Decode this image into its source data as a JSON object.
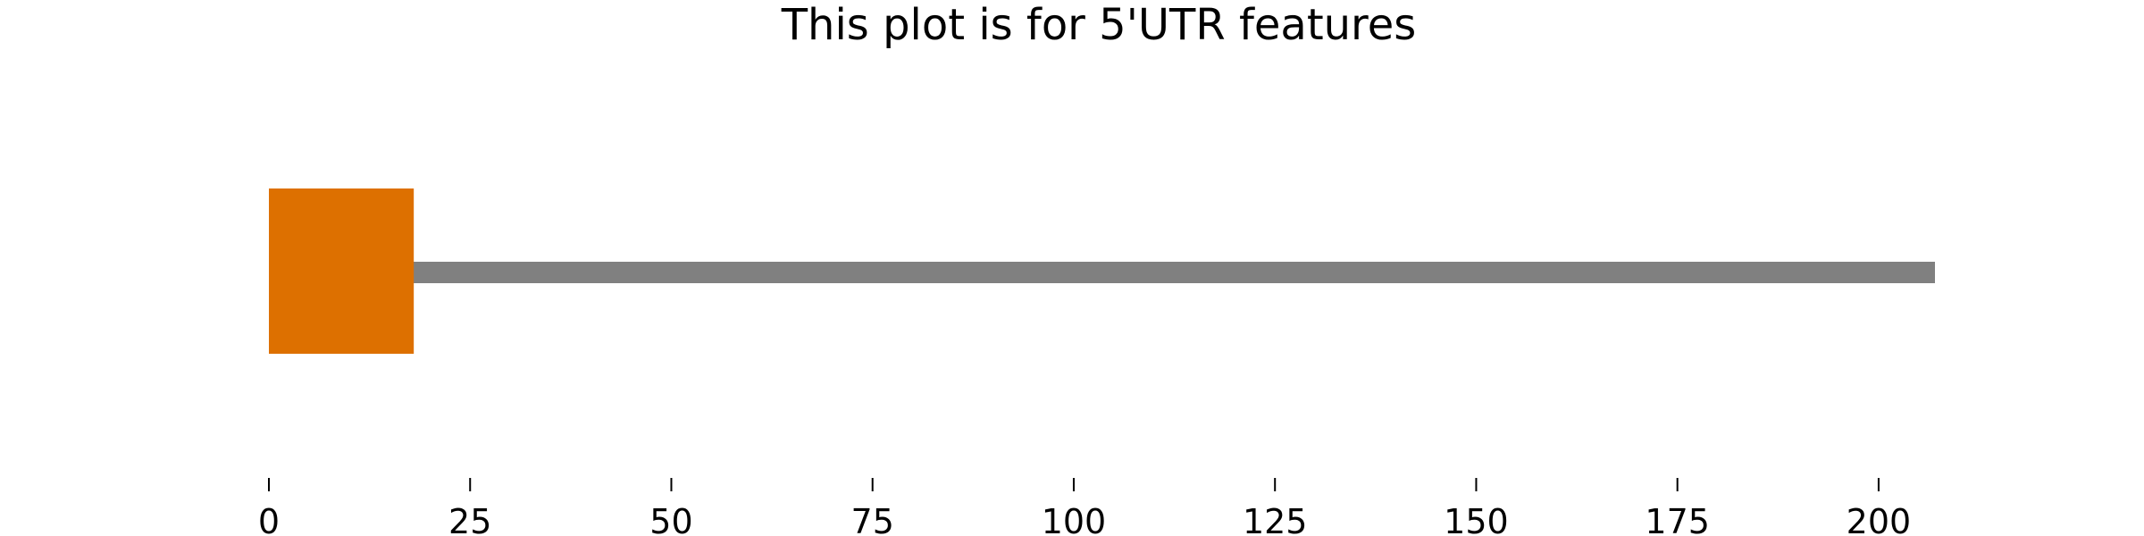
{
  "chart_data": {
    "type": "bar",
    "title": "This plot is for 5'UTR features",
    "xlabel": "",
    "ylabel": "",
    "grid": false,
    "xlim": [
      0,
      207
    ],
    "backbone": {
      "start": 0,
      "end": 207,
      "color": "#808080"
    },
    "features": [
      {
        "start": 0,
        "end": 18,
        "color": "#DD7000"
      }
    ],
    "xticks": [
      0,
      25,
      50,
      75,
      100,
      125,
      150,
      175,
      200
    ],
    "xtick_labels": [
      "0",
      "25",
      "50",
      "75",
      "100",
      "125",
      "150",
      "175",
      "200"
    ]
  }
}
